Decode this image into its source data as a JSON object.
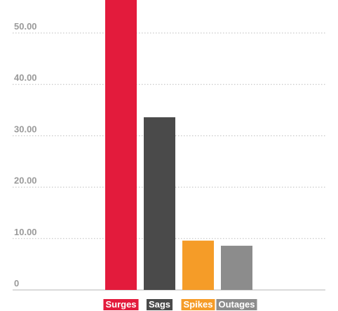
{
  "chart_data": {
    "type": "bar",
    "categories": [
      "Surges",
      "Sags",
      "Spikes",
      "Outages"
    ],
    "values": [
      58.3,
      33.6,
      9.6,
      8.6
    ],
    "colors": [
      "#e31b3c",
      "#4a4a4a",
      "#f59c28",
      "#8c8c8c"
    ],
    "y_ticks": [
      0,
      10,
      20,
      30,
      40,
      50
    ],
    "y_tick_labels": [
      "0",
      "10.00",
      "20.00",
      "30.00",
      "40.00",
      "50.00"
    ],
    "ylim": [
      0,
      58.5
    ],
    "grid": "horizontal dotted",
    "title": "",
    "xlabel": "",
    "ylabel": ""
  }
}
